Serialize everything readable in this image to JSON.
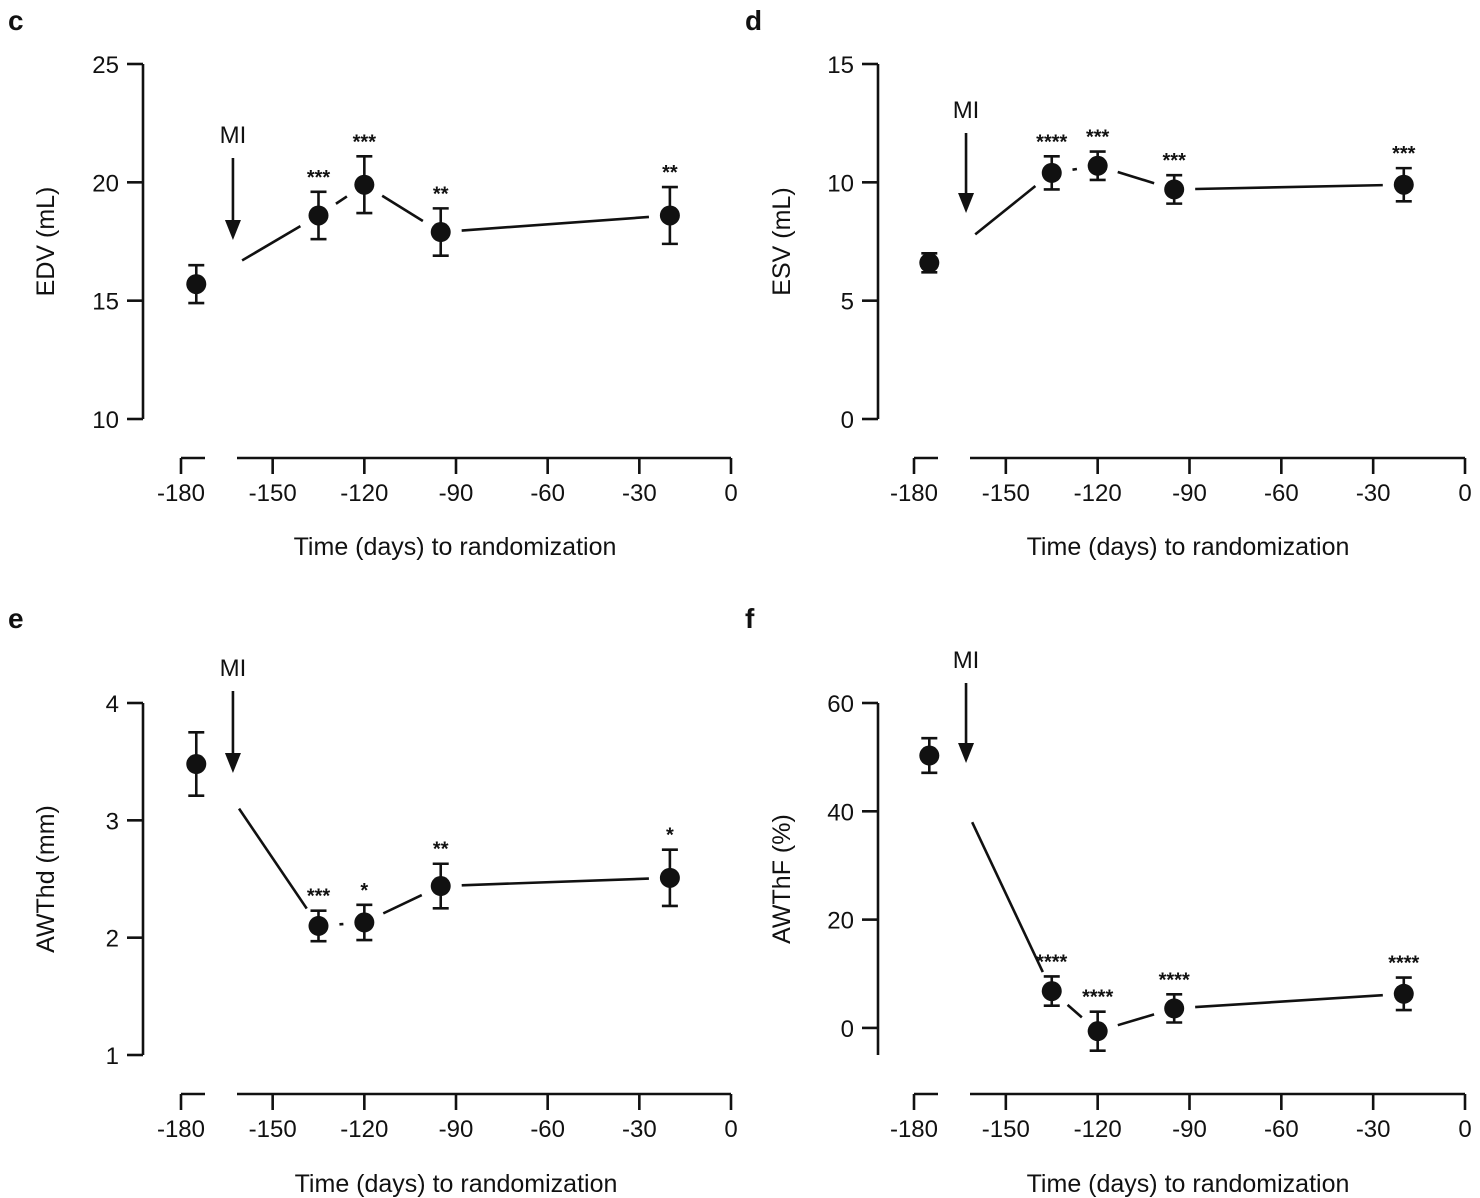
{
  "chart_data": [
    {
      "panel": "c",
      "type": "scatter",
      "ylabel": "EDV (mL)",
      "xlabel": "Time (days) to randomization",
      "ylim": [
        10,
        25
      ],
      "yticks": [
        10,
        15,
        20,
        25
      ],
      "xlim": [
        -180,
        0
      ],
      "xticks": [
        -180,
        -150,
        -120,
        -90,
        -60,
        -30,
        0
      ],
      "annotation": "MI",
      "mi_day": -163,
      "baseline": {
        "x": -175,
        "y": 15.7,
        "err": 0.8
      },
      "line_start": {
        "x": -160,
        "y": 16.7
      },
      "points": [
        {
          "x": -135,
          "y": 18.6,
          "err": 1.0,
          "sig": "***"
        },
        {
          "x": -120,
          "y": 19.9,
          "err": 1.2,
          "sig": "***"
        },
        {
          "x": -95,
          "y": 17.9,
          "err": 1.0,
          "sig": "**"
        },
        {
          "x": -20,
          "y": 18.6,
          "err": 1.2,
          "sig": "**"
        }
      ]
    },
    {
      "panel": "d",
      "type": "scatter",
      "ylabel": "ESV (mL)",
      "xlabel": "Time (days) to randomization",
      "ylim": [
        0,
        15
      ],
      "yticks": [
        0,
        5,
        10,
        15
      ],
      "xlim": [
        -180,
        0
      ],
      "xticks": [
        -180,
        -150,
        -120,
        -90,
        -60,
        -30,
        0
      ],
      "annotation": "MI",
      "mi_day": -163,
      "baseline": {
        "x": -175,
        "y": 6.6,
        "err": 0.4
      },
      "line_start": {
        "x": -160,
        "y": 7.8
      },
      "points": [
        {
          "x": -135,
          "y": 10.4,
          "err": 0.7,
          "sig": "****"
        },
        {
          "x": -120,
          "y": 10.7,
          "err": 0.6,
          "sig": "***"
        },
        {
          "x": -95,
          "y": 9.7,
          "err": 0.6,
          "sig": "***"
        },
        {
          "x": -20,
          "y": 9.9,
          "err": 0.7,
          "sig": "***"
        }
      ]
    },
    {
      "panel": "e",
      "type": "scatter",
      "ylabel": "AWThd (mm)",
      "xlabel": "Time (days) to randomization",
      "ylim": [
        1,
        4
      ],
      "yticks": [
        1,
        2,
        3,
        4
      ],
      "xlim": [
        -180,
        0
      ],
      "xticks": [
        -180,
        -150,
        -120,
        -90,
        -60,
        -30,
        0
      ],
      "annotation": "MI",
      "mi_day": -163,
      "baseline": {
        "x": -175,
        "y": 3.48,
        "err": 0.27
      },
      "line_start": {
        "x": -161,
        "y": 3.1
      },
      "points": [
        {
          "x": -135,
          "y": 2.1,
          "err": 0.13,
          "sig": "***"
        },
        {
          "x": -120,
          "y": 2.13,
          "err": 0.15,
          "sig": "*"
        },
        {
          "x": -95,
          "y": 2.44,
          "err": 0.19,
          "sig": "**"
        },
        {
          "x": -20,
          "y": 2.51,
          "err": 0.24,
          "sig": "*"
        }
      ]
    },
    {
      "panel": "f",
      "type": "scatter",
      "ylabel": "AWThF (%)",
      "xlabel": "Time (days) to randomization",
      "ylim": [
        -5,
        60
      ],
      "yticks": [
        0,
        20,
        40,
        60
      ],
      "xlim": [
        -180,
        0
      ],
      "xticks": [
        -180,
        -150,
        -120,
        -90,
        -60,
        -30,
        0
      ],
      "annotation": "MI",
      "mi_day": -163,
      "baseline": {
        "x": -175,
        "y": 50.3,
        "err": 3.2
      },
      "line_start": {
        "x": -161,
        "y": 38.0
      },
      "points": [
        {
          "x": -135,
          "y": 6.8,
          "err": 2.7,
          "sig": "****"
        },
        {
          "x": -120,
          "y": -0.6,
          "err": 3.6,
          "sig": "****"
        },
        {
          "x": -95,
          "y": 3.6,
          "err": 2.6,
          "sig": "****"
        },
        {
          "x": -20,
          "y": 6.3,
          "err": 3.0,
          "sig": "****"
        }
      ]
    }
  ]
}
